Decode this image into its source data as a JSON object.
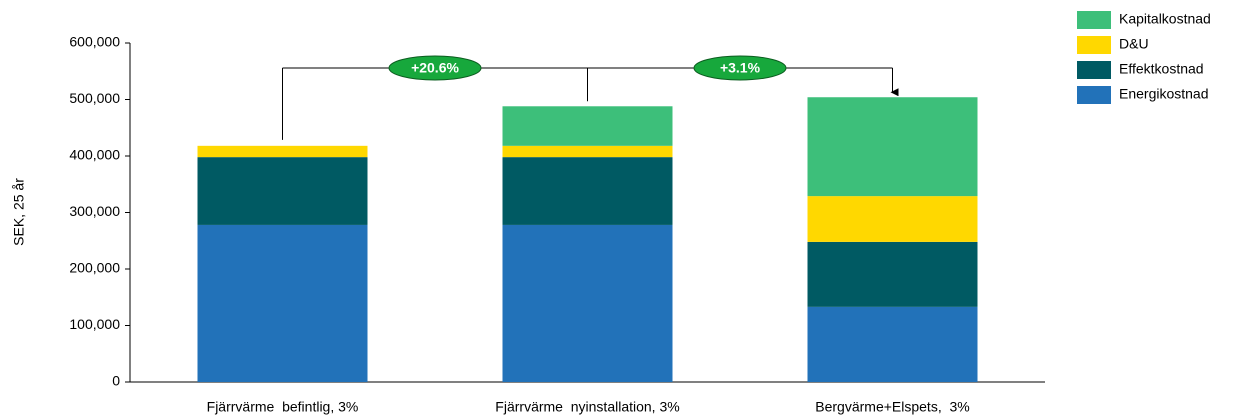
{
  "chart_data": {
    "type": "stacked_bar",
    "y_label": "SEK, 25 år",
    "categories": [
      "Fjärrvärme  befintlig, 3%",
      "Fjärrvärme  nyinstallation, 3%",
      "Bergvärme+Elspets,  3%"
    ],
    "series": [
      {
        "name": "Energikostnad",
        "color": "#2272b9",
        "values": [
          278000,
          278000,
          133000
        ]
      },
      {
        "name": "Effektkostnad",
        "color": "#005a63",
        "values": [
          120000,
          120000,
          115000
        ]
      },
      {
        "name": "D&U",
        "color": "#ffd800",
        "values": [
          20000,
          20000,
          81000
        ]
      },
      {
        "name": "Kapitalkostnad",
        "color": "#3dbf7a",
        "values": [
          0,
          70000,
          175000
        ]
      }
    ],
    "annotations": [
      "+20.6%",
      "+3.1%"
    ],
    "ylim": [
      0,
      600000
    ],
    "yticks": [
      0,
      {
        "value": 100000,
        "label": "100,000"
      },
      {
        "value": 200000,
        "label": "200,000"
      },
      {
        "value": 300000,
        "label": "300,000"
      },
      {
        "value": 400000,
        "label": "400,000"
      },
      {
        "value": 500000,
        "label": "500,000"
      },
      {
        "value": 600000,
        "label": "600,000"
      }
    ],
    "legend": "top-right",
    "legend_reversed": true,
    "grid": false
  }
}
